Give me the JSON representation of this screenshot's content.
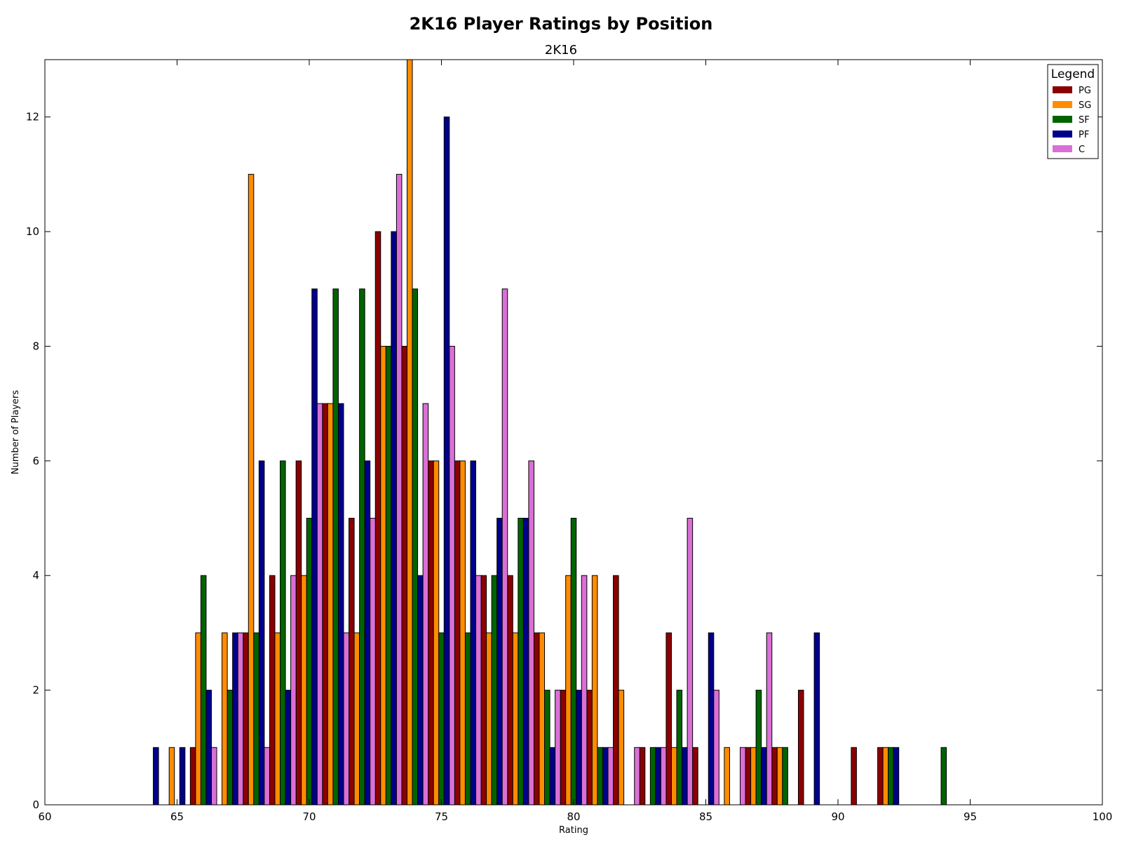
{
  "chart_data": {
    "type": "bar",
    "suptitle": "2K16 Player Ratings by Position",
    "title": "2K16",
    "xlabel": "Rating",
    "ylabel": "Number of Players",
    "xlim": [
      60,
      100
    ],
    "ylim": [
      0,
      13
    ],
    "xticks": [
      "60",
      "65",
      "70",
      "75",
      "80",
      "85",
      "90",
      "95",
      "100"
    ],
    "yticks": [
      "0",
      "2",
      "4",
      "6",
      "8",
      "10",
      "12"
    ],
    "grid": false,
    "legend": {
      "title": "Legend",
      "position": "top-right"
    },
    "bin_start": 63.5,
    "bin_width": 1,
    "series": [
      {
        "name": "PG",
        "color": "#8B0000",
        "values": [
          0,
          0,
          1,
          0,
          3,
          4,
          6,
          7,
          5,
          10,
          8,
          6,
          6,
          4,
          4,
          3,
          2,
          2,
          4,
          1,
          3,
          1,
          0,
          1,
          1,
          2,
          0,
          1,
          1,
          0,
          0,
          0
        ]
      },
      {
        "name": "SG",
        "color": "#FF8C00",
        "values": [
          0,
          1,
          3,
          3,
          11,
          3,
          4,
          7,
          3,
          8,
          13,
          6,
          6,
          3,
          3,
          3,
          4,
          4,
          2,
          0,
          1,
          0,
          1,
          1,
          1,
          0,
          0,
          0,
          1,
          0,
          0,
          0
        ]
      },
      {
        "name": "SF",
        "color": "#006400",
        "values": [
          0,
          0,
          4,
          2,
          3,
          6,
          5,
          9,
          9,
          8,
          9,
          3,
          3,
          4,
          5,
          2,
          5,
          1,
          0,
          1,
          2,
          0,
          0,
          2,
          1,
          0,
          0,
          0,
          1,
          0,
          1,
          0
        ]
      },
      {
        "name": "PF",
        "color": "#00008B",
        "values": [
          1,
          1,
          2,
          3,
          6,
          2,
          9,
          7,
          6,
          10,
          4,
          12,
          6,
          5,
          5,
          1,
          2,
          1,
          0,
          1,
          1,
          3,
          0,
          1,
          0,
          3,
          0,
          0,
          1,
          0,
          0,
          0
        ]
      },
      {
        "name": "C",
        "color": "#DA70D6",
        "values": [
          0,
          0,
          1,
          3,
          1,
          4,
          7,
          3,
          5,
          11,
          7,
          8,
          4,
          9,
          6,
          2,
          4,
          1,
          1,
          1,
          5,
          2,
          1,
          3,
          0,
          0,
          0,
          0,
          0,
          0,
          0,
          0
        ]
      }
    ]
  }
}
